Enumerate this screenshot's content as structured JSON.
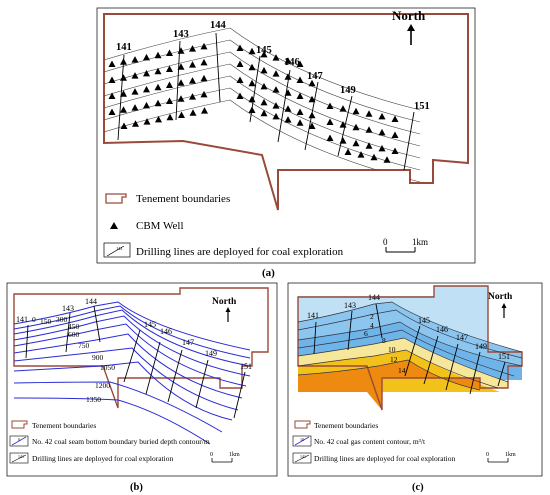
{
  "panels": {
    "a": {
      "caption": "(a)",
      "north": "North",
      "scale": {
        "start": "0",
        "end": "1km"
      },
      "drill_lines": [
        "141",
        "143",
        "144",
        "145",
        "146",
        "147",
        "149",
        "151"
      ],
      "legend": {
        "tenement": "Tenement boundaries",
        "well": "CBM Well",
        "drill": "Drilling lines are deployed for coal exploration",
        "drill_icon": "141"
      }
    },
    "b": {
      "caption": "(b)",
      "north": "North",
      "scale": {
        "start": "0",
        "end": "1km"
      },
      "drill_lines": [
        "141",
        "143",
        "144",
        "145",
        "146",
        "147",
        "149",
        "151"
      ],
      "contour_labels": [
        "0",
        "150",
        "300",
        "450",
        "600",
        "750",
        "900",
        "1050",
        "1200",
        "1350"
      ],
      "legend": {
        "tenement": "Tenement boundaries",
        "contour": "No. 42 coal seam bottom boundary buried depth contour/m",
        "contour_icon": "0",
        "drill": "Drilling lines are deployed for coal exploration",
        "drill_icon": "141"
      }
    },
    "c": {
      "caption": "(c)",
      "north": "North",
      "scale": {
        "start": "0",
        "end": "1km"
      },
      "drill_lines": [
        "141",
        "143",
        "144",
        "145",
        "146",
        "147",
        "149",
        "151"
      ],
      "contour_labels": [
        "2",
        "4",
        "6",
        "8",
        "10",
        "12",
        "14"
      ],
      "legend": {
        "tenement": "Tenement boundaries",
        "contour": "No. 42 coal gas content contour, m³/t",
        "contour_icon": "10",
        "drill": "Drilling lines are deployed for coal exploration",
        "drill_icon": "141"
      }
    }
  },
  "colors": {
    "tenement": "#9a4a3a",
    "depth_contour": "#2b2bd6",
    "drill": "#000000",
    "gas_light": "#bfe0f5",
    "gas_mid": "#6fb4e8",
    "gas_pale_yellow": "#f6e79a",
    "gas_yellow": "#f3c21a",
    "gas_orange": "#ee8a10"
  },
  "icons": {
    "north": "north-arrow-icon",
    "well": "triangle-well-icon"
  }
}
